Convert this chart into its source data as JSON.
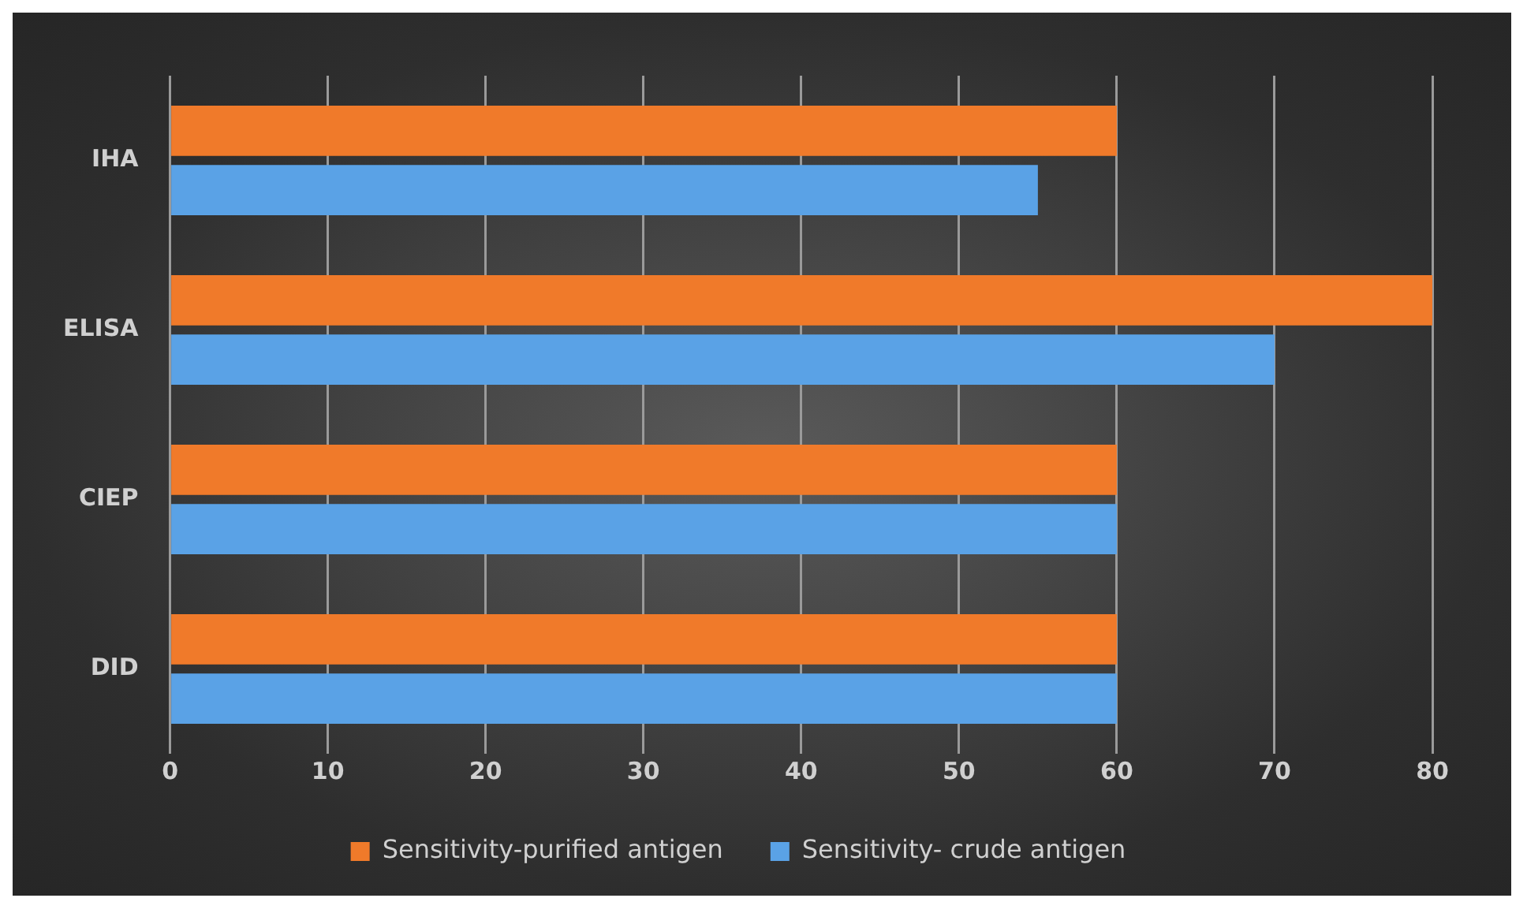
{
  "chart_data": {
    "type": "bar",
    "orientation": "horizontal",
    "categories": [
      "IHA",
      "ELISA",
      "CIEP",
      "DID"
    ],
    "series": [
      {
        "name": "Sensitivity-purified antigen",
        "color": "#f07a2a",
        "values": [
          60,
          80,
          60,
          60
        ]
      },
      {
        "name": "Sensitivity- crude antigen",
        "color": "#5aa2e6",
        "values": [
          55,
          70,
          60,
          60
        ]
      }
    ],
    "xlim": [
      0,
      80
    ],
    "xticks": [
      0,
      10,
      20,
      30,
      40,
      50,
      60,
      70,
      80
    ],
    "grid": "x",
    "legend": "bottom"
  }
}
